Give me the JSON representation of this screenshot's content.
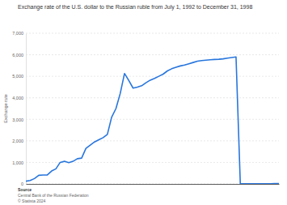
{
  "chart_data": {
    "type": "line",
    "title": "Exchange rate of the U.S. dollar to the Russian ruble from July 1, 1992 to December 31, 1998",
    "y_label": "Exchange rate",
    "annotations": [
      "Source",
      "Central Bank of the Russian Federation",
      "© Statista 2024"
    ],
    "categories": [
      null,
      null,
      null,
      null,
      null,
      null,
      null,
      null,
      null,
      null,
      null,
      null,
      null,
      null,
      null,
      null,
      null,
      null,
      null,
      null,
      null,
      null,
      null,
      null,
      null,
      null,
      null,
      null,
      null,
      null,
      null,
      null,
      null,
      null,
      null,
      null,
      null,
      null,
      null,
      null,
      null,
      null,
      null,
      null,
      null,
      null,
      null,
      null,
      null,
      null,
      null,
      null,
      null,
      null,
      null,
      null,
      null,
      null,
      null,
      null
    ],
    "values": [
      125,
      160,
      250,
      400,
      415,
      420,
      600,
      700,
      1000,
      1050,
      990,
      1050,
      1170,
      1200,
      1650,
      1800,
      1950,
      2050,
      2150,
      2300,
      3100,
      3500,
      4200,
      5130,
      4800,
      4450,
      4500,
      4560,
      4700,
      4820,
      4900,
      5000,
      5100,
      5250,
      5350,
      5420,
      5480,
      5520,
      5580,
      5640,
      5700,
      5730,
      5750,
      5770,
      5780,
      5790,
      5810,
      5840,
      5870,
      5900,
      6.0,
      6.1,
      6.1,
      6.2,
      6.2,
      6.3,
      6.5,
      7.9,
      16,
      20.7
    ],
    "color": "#2876dd",
    "ylim": [
      0,
      7000
    ],
    "yticks": [
      0,
      {
        "value": 1000,
        "label": "1,000"
      },
      {
        "value": 2000,
        "label": "2,000"
      },
      {
        "value": 3000,
        "label": "3,000"
      },
      {
        "value": 4000,
        "label": "4,000"
      },
      {
        "value": 5000,
        "label": "5,000"
      },
      {
        "value": 6000,
        "label": "6,000"
      },
      {
        "value": 7000,
        "label": "7,000"
      }
    ],
    "grid": true,
    "tick_labels": "y"
  }
}
